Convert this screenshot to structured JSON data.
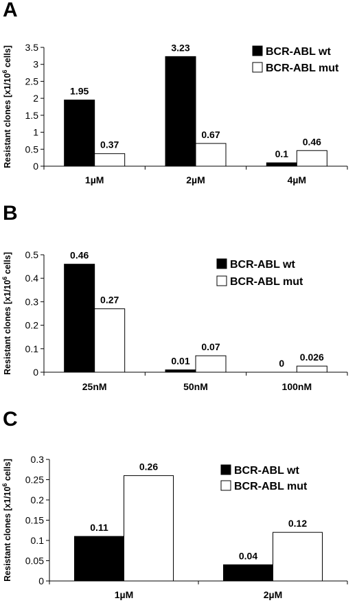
{
  "chart_data": [
    {
      "panel": "A",
      "type": "bar",
      "ylabel": "Resistant clones [x1/10^6 cells]",
      "ylabel_main": "Resistant clones [x1/10",
      "ylabel_sup": "6",
      "ylabel_tail": " cells]",
      "ylim": [
        0,
        3.5
      ],
      "yticks": [
        "0",
        "0.5",
        "1",
        "1.5",
        "2",
        "2.5",
        "3",
        "3.5"
      ],
      "categories": [
        "1µM",
        "2µM",
        "4µM"
      ],
      "series": [
        {
          "name": "BCR-ABL wt",
          "values": [
            1.95,
            3.23,
            0.1
          ],
          "labels": [
            "1.95",
            "3.23",
            "0.1"
          ],
          "fill": "#000000"
        },
        {
          "name": "BCR-ABL mut",
          "values": [
            0.37,
            0.67,
            0.46
          ],
          "labels": [
            "0.37",
            "0.67",
            "0.46"
          ],
          "fill": "#ffffff"
        }
      ],
      "legend_position": "top-right",
      "grid": false
    },
    {
      "panel": "B",
      "type": "bar",
      "ylabel": "Resistant clones [x1/10^6 cells]",
      "ylabel_main": "Resistant clones [x1/10",
      "ylabel_sup": "6",
      "ylabel_tail": " cells]",
      "ylim": [
        0,
        0.5
      ],
      "yticks": [
        "0",
        "0.1",
        "0.2",
        "0.3",
        "0.4",
        "0.5"
      ],
      "categories": [
        "25nM",
        "50nM",
        "100nM"
      ],
      "series": [
        {
          "name": "BCR-ABL wt",
          "values": [
            0.46,
            0.01,
            0
          ],
          "labels": [
            "0.46",
            "0.01",
            "0"
          ],
          "fill": "#000000"
        },
        {
          "name": "BCR-ABL mut",
          "values": [
            0.27,
            0.07,
            0.026
          ],
          "labels": [
            "0.27",
            "0.07",
            "0.026"
          ],
          "fill": "#ffffff"
        }
      ],
      "legend_position": "top-right",
      "grid": false
    },
    {
      "panel": "C",
      "type": "bar",
      "ylabel": "Resistant clones [x1/10^6 cells]",
      "ylabel_main": "Resistant clones [x1/10",
      "ylabel_sup": "6",
      "ylabel_tail": " cells]",
      "ylim": [
        0,
        0.3
      ],
      "yticks": [
        "0",
        "0.05",
        "0.1",
        "0.15",
        "0.2",
        "0.25",
        "0.3"
      ],
      "categories": [
        "1µM",
        "2µM"
      ],
      "series": [
        {
          "name": "BCR-ABL wt",
          "values": [
            0.11,
            0.04
          ],
          "labels": [
            "0.11",
            "0.04"
          ],
          "fill": "#000000"
        },
        {
          "name": "BCR-ABL mut",
          "values": [
            0.26,
            0.12
          ],
          "labels": [
            "0.26",
            "0.12"
          ],
          "fill": "#ffffff"
        }
      ],
      "legend_position": "top-right",
      "grid": false
    }
  ]
}
